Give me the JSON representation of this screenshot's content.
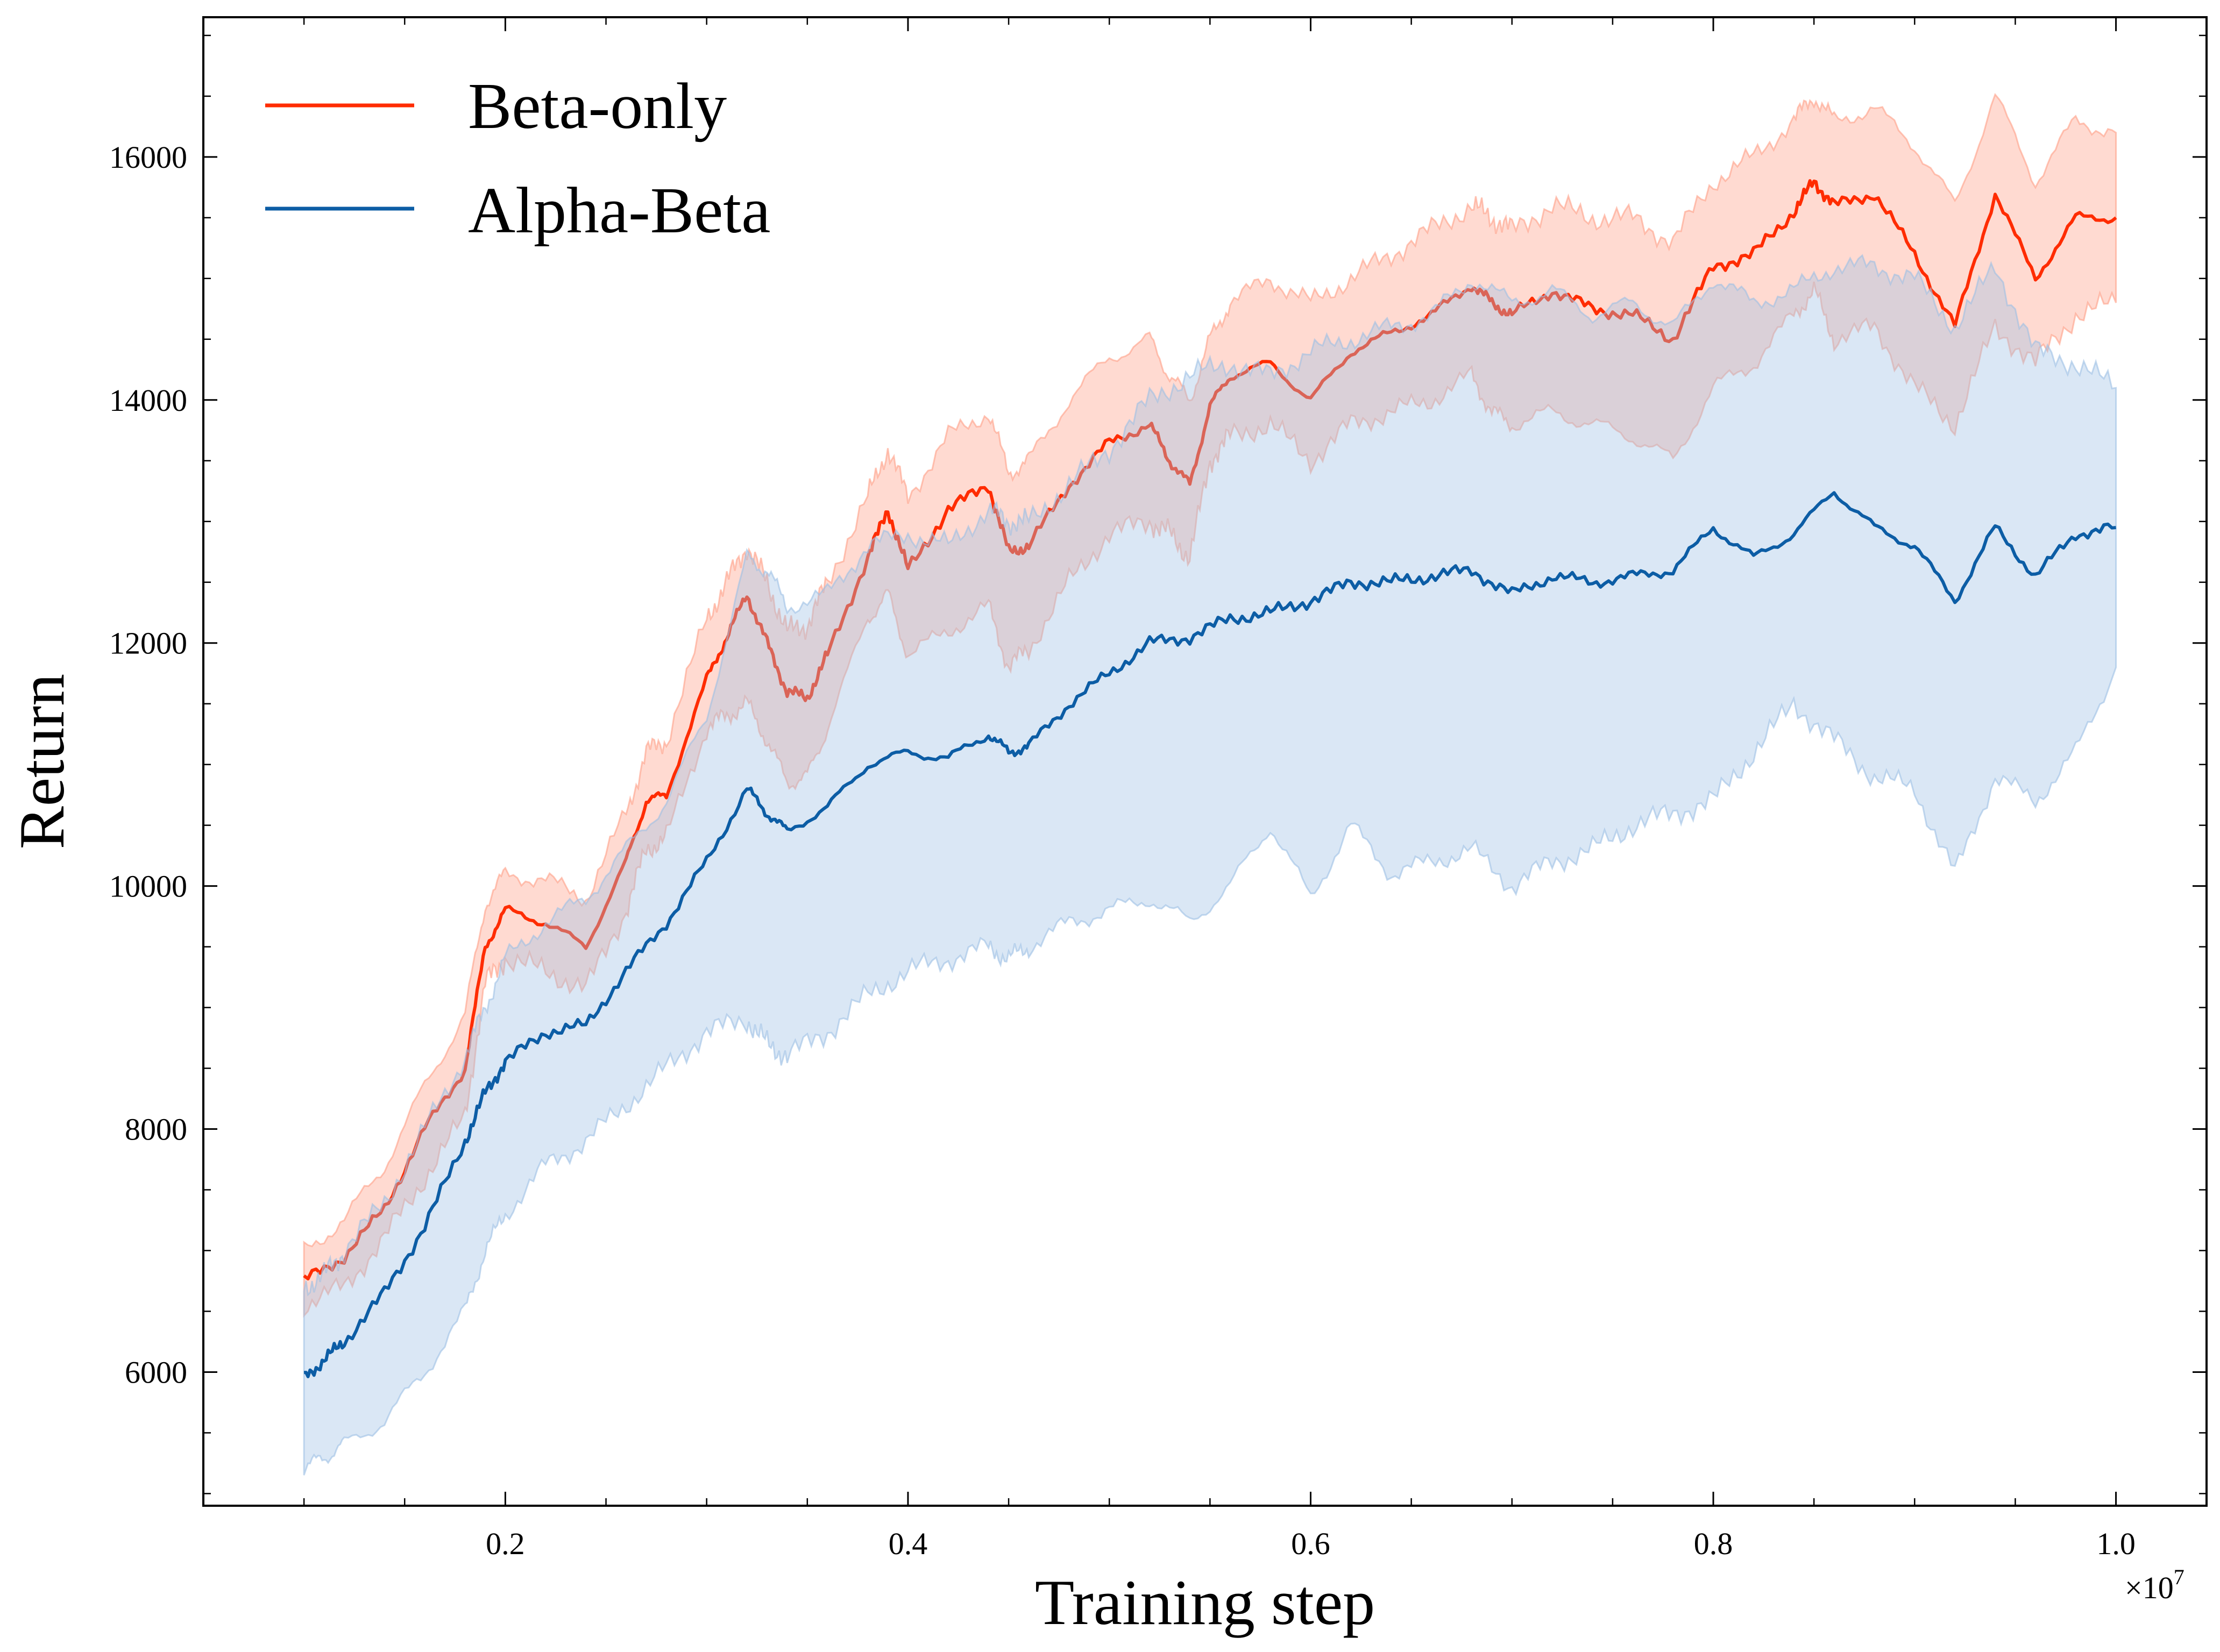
{
  "chart_data": {
    "type": "line",
    "title": "",
    "xlabel": "Training step",
    "ylabel": "Return",
    "x_offset_label": "×10",
    "x_offset_exponent": "7",
    "xlim": [
      0.05,
      1.045
    ],
    "ylim": [
      4900,
      17150
    ],
    "x_ticks": [
      0.2,
      0.4,
      0.6,
      0.8,
      1.0
    ],
    "x_tick_labels": [
      "0.2",
      "0.4",
      "0.6",
      "0.8",
      "1.0"
    ],
    "y_ticks": [
      6000,
      8000,
      10000,
      12000,
      14000,
      16000
    ],
    "y_tick_labels": [
      "6000",
      "8000",
      "10000",
      "12000",
      "14000",
      "16000"
    ],
    "grid": false,
    "legend_position": "top-left",
    "series": [
      {
        "name": "Beta-only",
        "color": "#ff2c00",
        "band_color": "#ff9e86",
        "x": [
          0.1,
          0.12,
          0.14,
          0.16,
          0.18,
          0.19,
          0.2,
          0.22,
          0.24,
          0.26,
          0.27,
          0.28,
          0.3,
          0.31,
          0.32,
          0.33,
          0.34,
          0.35,
          0.36,
          0.38,
          0.39,
          0.4,
          0.42,
          0.44,
          0.45,
          0.46,
          0.48,
          0.5,
          0.52,
          0.53,
          0.54,
          0.55,
          0.56,
          0.58,
          0.6,
          0.62,
          0.64,
          0.66,
          0.68,
          0.69,
          0.7,
          0.72,
          0.74,
          0.76,
          0.78,
          0.8,
          0.82,
          0.84,
          0.85,
          0.86,
          0.88,
          0.9,
          0.92,
          0.94,
          0.96,
          0.98,
          1.0
        ],
        "values": [
          6750,
          6950,
          7350,
          8000,
          8500,
          9500,
          9800,
          9700,
          9500,
          10200,
          10700,
          10750,
          11700,
          12050,
          12400,
          12000,
          11600,
          11550,
          11900,
          12700,
          13100,
          12600,
          13100,
          13300,
          12750,
          12800,
          13300,
          13650,
          13800,
          13500,
          13300,
          13950,
          14200,
          14300,
          14000,
          14400,
          14550,
          14700,
          14950,
          14800,
          14700,
          14900,
          14750,
          14700,
          14500,
          15100,
          15200,
          15550,
          15800,
          15600,
          15700,
          15200,
          14600,
          15700,
          15000,
          15500,
          15500
        ],
        "lower": [
          6550,
          6700,
          7100,
          7600,
          8100,
          9200,
          9400,
          9300,
          9150,
          9800,
          10300,
          10400,
          11300,
          11400,
          11500,
          11200,
          10850,
          10900,
          11300,
          12200,
          12400,
          11900,
          12100,
          12300,
          11800,
          11950,
          12500,
          12900,
          13000,
          12900,
          12700,
          13500,
          13700,
          13800,
          13500,
          13800,
          13900,
          14000,
          14200,
          13900,
          13800,
          13900,
          13800,
          13700,
          13500,
          14100,
          14300,
          14700,
          14900,
          14500,
          14600,
          14100,
          13800,
          14600,
          14300,
          14700,
          14800
        ],
        "upper": [
          7000,
          7250,
          7700,
          8350,
          8950,
          9850,
          10100,
          10050,
          9900,
          10600,
          11100,
          11200,
          12200,
          12500,
          12800,
          12500,
          12100,
          12150,
          12500,
          13200,
          13600,
          13200,
          13700,
          13900,
          13400,
          13500,
          14000,
          14350,
          14500,
          14200,
          14000,
          14500,
          14800,
          15000,
          14800,
          15000,
          15200,
          15400,
          15600,
          15500,
          15400,
          15600,
          15500,
          15500,
          15300,
          15800,
          16000,
          16300,
          16500,
          16300,
          16400,
          16100,
          15600,
          16500,
          15800,
          16300,
          16200
        ]
      },
      {
        "name": "Alpha-Beta",
        "color": "#0c5da5",
        "band_color": "#9dbfe4",
        "x": [
          0.1,
          0.11,
          0.12,
          0.14,
          0.16,
          0.18,
          0.19,
          0.2,
          0.22,
          0.24,
          0.26,
          0.28,
          0.3,
          0.32,
          0.33,
          0.34,
          0.36,
          0.38,
          0.4,
          0.42,
          0.44,
          0.45,
          0.46,
          0.48,
          0.5,
          0.52,
          0.54,
          0.56,
          0.58,
          0.6,
          0.62,
          0.64,
          0.66,
          0.68,
          0.7,
          0.72,
          0.74,
          0.76,
          0.78,
          0.8,
          0.82,
          0.84,
          0.86,
          0.88,
          0.9,
          0.92,
          0.94,
          0.96,
          0.98,
          1.0
        ],
        "values": [
          5950,
          6100,
          6250,
          6650,
          7200,
          7900,
          8300,
          8550,
          8800,
          8850,
          9300,
          9700,
          10200,
          10800,
          10600,
          10450,
          10650,
          11000,
          11100,
          11050,
          11250,
          11100,
          11150,
          11500,
          11750,
          12000,
          12050,
          12200,
          12250,
          12350,
          12500,
          12500,
          12550,
          12600,
          12400,
          12550,
          12500,
          12550,
          12600,
          12950,
          12700,
          12900,
          13250,
          12950,
          12800,
          12350,
          12950,
          12550,
          12900,
          12950
        ],
        "lower": [
          5200,
          5300,
          5400,
          5600,
          6000,
          6500,
          7000,
          7300,
          7700,
          7900,
          8200,
          8500,
          8800,
          8900,
          8700,
          8600,
          8800,
          9100,
          9300,
          9400,
          9500,
          9400,
          9500,
          9700,
          9800,
          9900,
          9700,
          10000,
          10500,
          9900,
          10500,
          10100,
          10200,
          10300,
          10000,
          10200,
          10300,
          10500,
          10600,
          10700,
          11100,
          11500,
          11200,
          10900,
          10800,
          10100,
          10900,
          10700,
          11100,
          11800
        ],
        "upper": [
          6700,
          6800,
          7000,
          7400,
          8000,
          8600,
          9000,
          9400,
          9700,
          9900,
          10300,
          10700,
          11400,
          12700,
          12600,
          12300,
          12400,
          12800,
          12900,
          12800,
          13100,
          13000,
          13000,
          13300,
          13600,
          14000,
          14200,
          14300,
          14200,
          14400,
          14500,
          14600,
          14700,
          15000,
          14800,
          14900,
          14700,
          14800,
          14600,
          15000,
          14800,
          14900,
          15100,
          15100,
          15000,
          14600,
          15100,
          14400,
          14300,
          14100
        ]
      }
    ]
  }
}
